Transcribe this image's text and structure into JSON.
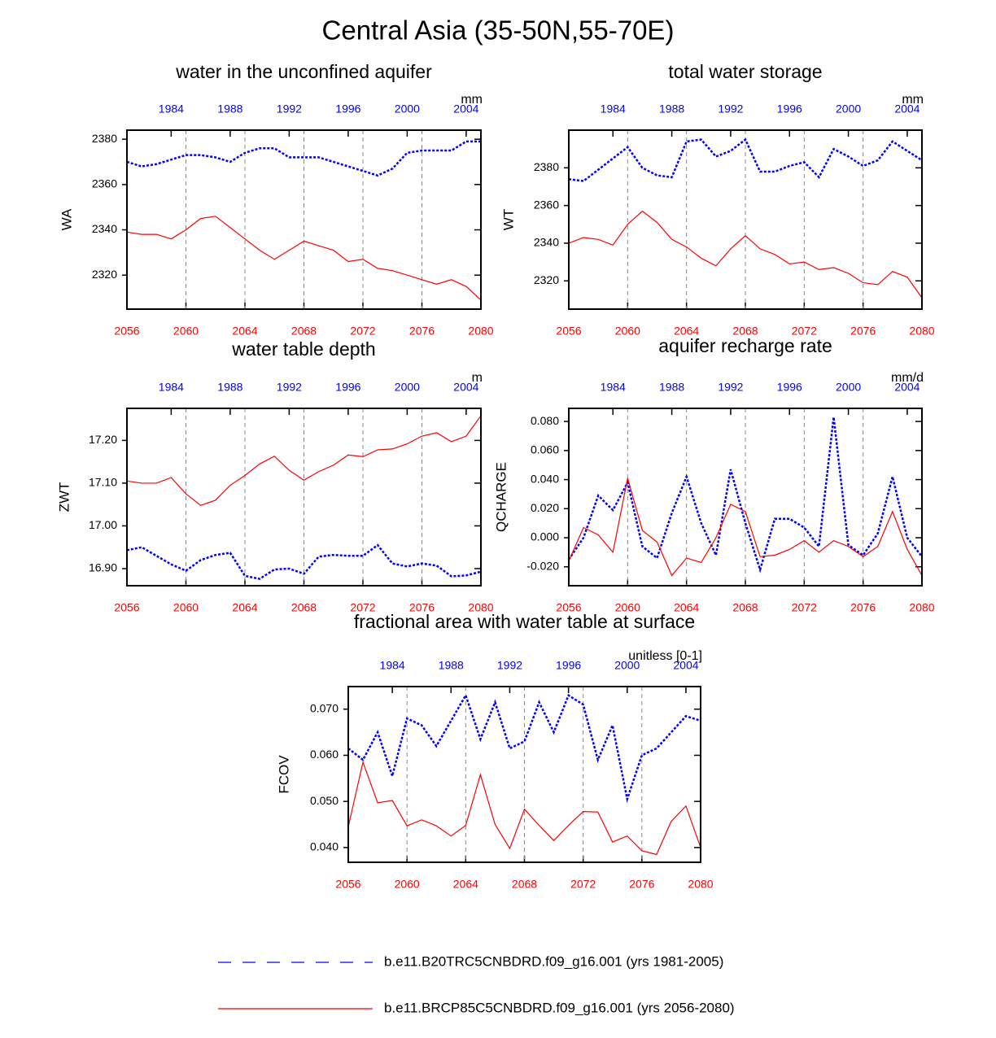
{
  "title": "Central Asia (35-50N,55-70E)",
  "chart_data": [
    {
      "type": "line",
      "title": "water in the unconfined aquifer",
      "ylabel": "WA",
      "units": "mm",
      "x": [
        2056,
        2057,
        2058,
        2059,
        2060,
        2061,
        2062,
        2063,
        2064,
        2065,
        2066,
        2067,
        2068,
        2069,
        2070,
        2071,
        2072,
        2073,
        2074,
        2075,
        2076,
        2077,
        2078,
        2079,
        2080
      ],
      "x2": [
        1981,
        1982,
        1983,
        1984,
        1985,
        1986,
        1987,
        1988,
        1989,
        1990,
        1991,
        1992,
        1993,
        1994,
        1995,
        1996,
        1997,
        1998,
        1999,
        2000,
        2001,
        2002,
        2003,
        2004,
        2005
      ],
      "xlim": [
        2056,
        2080
      ],
      "xticks": [
        2056,
        2060,
        2064,
        2068,
        2072,
        2076,
        2080
      ],
      "x2lim": [
        1981,
        2005
      ],
      "x2ticks": [
        1984,
        1988,
        1992,
        1996,
        2000,
        2004
      ],
      "ylim": [
        2305,
        2384
      ],
      "yticks": [
        2320,
        2340,
        2360,
        2380
      ],
      "grid": true,
      "series": [
        {
          "name": "b.e11.B20TRC5CNBDRD.f09_g16.001 (yrs 1981-2005)",
          "color": "#0000ff",
          "dashed": true,
          "axis": "x2",
          "values": [
            2370,
            2368,
            2369,
            2371,
            2373,
            2373,
            2372,
            2370,
            2374,
            2376,
            2376,
            2372,
            2372,
            2372,
            2370,
            2368,
            2366,
            2364,
            2367,
            2374,
            2375,
            2375,
            2375,
            2379,
            2379
          ]
        },
        {
          "name": "b.e11.BRCP85C5CNBDRD.f09_g16.001 (yrs 2056-2080)",
          "color": "#ff0000",
          "dashed": false,
          "axis": "x",
          "values": [
            2339,
            2338,
            2338,
            2336,
            2340,
            2345,
            2346,
            2341,
            2336,
            2331,
            2327,
            2331,
            2335,
            2333,
            2331,
            2326,
            2327,
            2323,
            2322,
            2320,
            2318,
            2316,
            2318,
            2315,
            2309
          ]
        }
      ]
    },
    {
      "type": "line",
      "title": "total water storage",
      "ylabel": "WT",
      "units": "mm",
      "x": [
        2056,
        2057,
        2058,
        2059,
        2060,
        2061,
        2062,
        2063,
        2064,
        2065,
        2066,
        2067,
        2068,
        2069,
        2070,
        2071,
        2072,
        2073,
        2074,
        2075,
        2076,
        2077,
        2078,
        2079,
        2080
      ],
      "x2": [
        1981,
        1982,
        1983,
        1984,
        1985,
        1986,
        1987,
        1988,
        1989,
        1990,
        1991,
        1992,
        1993,
        1994,
        1995,
        1996,
        1997,
        1998,
        1999,
        2000,
        2001,
        2002,
        2003,
        2004,
        2005
      ],
      "xlim": [
        2056,
        2080
      ],
      "xticks": [
        2056,
        2060,
        2064,
        2068,
        2072,
        2076,
        2080
      ],
      "x2lim": [
        1981,
        2005
      ],
      "x2ticks": [
        1984,
        1988,
        1992,
        1996,
        2000,
        2004
      ],
      "ylim": [
        2305,
        2400
      ],
      "yticks": [
        2320,
        2340,
        2360,
        2380
      ],
      "grid": true,
      "series": [
        {
          "color": "#0000ff",
          "dashed": true,
          "axis": "x2",
          "values": [
            2374,
            2373,
            2379,
            2385,
            2391,
            2380,
            2376,
            2375,
            2394,
            2395,
            2386,
            2389,
            2395,
            2378,
            2378,
            2381,
            2383,
            2375,
            2390,
            2386,
            2381,
            2384,
            2394,
            2389,
            2384
          ]
        },
        {
          "color": "#ff0000",
          "dashed": false,
          "axis": "x",
          "values": [
            2340,
            2343,
            2342,
            2339,
            2350,
            2357,
            2351,
            2342,
            2338,
            2332,
            2328,
            2337,
            2344,
            2337,
            2334,
            2329,
            2330,
            2326,
            2327,
            2324,
            2319,
            2318,
            2325,
            2322,
            2311
          ]
        }
      ]
    },
    {
      "type": "line",
      "title": "water table depth",
      "ylabel": "ZWT",
      "units": "m",
      "x": [
        2056,
        2057,
        2058,
        2059,
        2060,
        2061,
        2062,
        2063,
        2064,
        2065,
        2066,
        2067,
        2068,
        2069,
        2070,
        2071,
        2072,
        2073,
        2074,
        2075,
        2076,
        2077,
        2078,
        2079,
        2080
      ],
      "x2": [
        1981,
        1982,
        1983,
        1984,
        1985,
        1986,
        1987,
        1988,
        1989,
        1990,
        1991,
        1992,
        1993,
        1994,
        1995,
        1996,
        1997,
        1998,
        1999,
        2000,
        2001,
        2002,
        2003,
        2004,
        2005
      ],
      "xlim": [
        2056,
        2080
      ],
      "xticks": [
        2056,
        2060,
        2064,
        2068,
        2072,
        2076,
        2080
      ],
      "x2lim": [
        1981,
        2005
      ],
      "x2ticks": [
        1984,
        1988,
        1992,
        1996,
        2000,
        2004
      ],
      "ylim": [
        16.86,
        17.275
      ],
      "yticks": [
        {
          "value": 16.9,
          "label": "16.90"
        },
        {
          "value": 17.0,
          "label": "17.00"
        },
        {
          "value": 17.1,
          "label": "17.10"
        },
        {
          "value": 17.2,
          "label": "17.20"
        }
      ],
      "grid": true,
      "series": [
        {
          "color": "#0000ff",
          "dashed": true,
          "axis": "x2",
          "values": [
            16.943,
            16.95,
            16.93,
            16.91,
            16.895,
            16.92,
            16.932,
            16.937,
            16.883,
            16.876,
            16.898,
            16.9,
            16.888,
            16.928,
            16.932,
            16.93,
            16.93,
            16.955,
            16.912,
            16.905,
            16.912,
            16.907,
            16.882,
            16.884,
            16.893
          ]
        },
        {
          "color": "#ff0000",
          "dashed": false,
          "axis": "x",
          "values": [
            17.105,
            17.1,
            17.1,
            17.113,
            17.075,
            17.048,
            17.06,
            17.095,
            17.118,
            17.145,
            17.163,
            17.13,
            17.107,
            17.127,
            17.142,
            17.166,
            17.162,
            17.178,
            17.18,
            17.192,
            17.21,
            17.218,
            17.197,
            17.21,
            17.258
          ]
        }
      ]
    },
    {
      "type": "line",
      "title": "aquifer recharge rate",
      "ylabel": "QCHARGE",
      "units": "mm/d",
      "x": [
        2056,
        2057,
        2058,
        2059,
        2060,
        2061,
        2062,
        2063,
        2064,
        2065,
        2066,
        2067,
        2068,
        2069,
        2070,
        2071,
        2072,
        2073,
        2074,
        2075,
        2076,
        2077,
        2078,
        2079,
        2080
      ],
      "x2": [
        1981,
        1982,
        1983,
        1984,
        1985,
        1986,
        1987,
        1988,
        1989,
        1990,
        1991,
        1992,
        1993,
        1994,
        1995,
        1996,
        1997,
        1998,
        1999,
        2000,
        2001,
        2002,
        2003,
        2004,
        2005
      ],
      "xlim": [
        2056,
        2080
      ],
      "xticks": [
        2056,
        2060,
        2064,
        2068,
        2072,
        2076,
        2080
      ],
      "x2lim": [
        1981,
        2005
      ],
      "x2ticks": [
        1984,
        1988,
        1992,
        1996,
        2000,
        2004
      ],
      "ylim": [
        -0.033,
        0.089
      ],
      "yticks": [
        {
          "value": -0.02,
          "label": "-0.020"
        },
        {
          "value": 0,
          "label": "0.000"
        },
        {
          "value": 0.02,
          "label": "0.020"
        },
        {
          "value": 0.04,
          "label": "0.040"
        },
        {
          "value": 0.06,
          "label": "0.060"
        },
        {
          "value": 0.08,
          "label": "0.080"
        }
      ],
      "grid": true,
      "series": [
        {
          "color": "#0000ff",
          "dashed": true,
          "axis": "x2",
          "values": [
            -0.015,
            0.0,
            0.029,
            0.019,
            0.038,
            -0.006,
            -0.014,
            0.017,
            0.042,
            0.01,
            -0.012,
            0.047,
            0.01,
            -0.022,
            0.013,
            0.013,
            0.007,
            -0.006,
            0.083,
            -0.005,
            -0.012,
            0.003,
            0.042,
            0.0,
            -0.013
          ]
        },
        {
          "color": "#ff0000",
          "dashed": false,
          "axis": "x",
          "values": [
            -0.016,
            0.007,
            0.002,
            -0.01,
            0.041,
            0.005,
            -0.003,
            -0.026,
            -0.014,
            -0.017,
            0.0,
            0.023,
            0.018,
            -0.013,
            -0.012,
            -0.008,
            -0.002,
            -0.01,
            -0.002,
            -0.006,
            -0.013,
            -0.006,
            0.018,
            -0.008,
            -0.026
          ]
        }
      ]
    },
    {
      "type": "line",
      "title": "fractional area with water table at surface",
      "ylabel": "FCOV",
      "units": "unitless [0-1]",
      "x": [
        2056,
        2057,
        2058,
        2059,
        2060,
        2061,
        2062,
        2063,
        2064,
        2065,
        2066,
        2067,
        2068,
        2069,
        2070,
        2071,
        2072,
        2073,
        2074,
        2075,
        2076,
        2077,
        2078,
        2079,
        2080
      ],
      "x2": [
        1981,
        1982,
        1983,
        1984,
        1985,
        1986,
        1987,
        1988,
        1989,
        1990,
        1991,
        1992,
        1993,
        1994,
        1995,
        1996,
        1997,
        1998,
        1999,
        2000,
        2001,
        2002,
        2003,
        2004,
        2005
      ],
      "xlim": [
        2056,
        2080
      ],
      "xticks": [
        2056,
        2060,
        2064,
        2068,
        2072,
        2076,
        2080
      ],
      "x2lim": [
        1981,
        2005
      ],
      "x2ticks": [
        1984,
        1988,
        1992,
        1996,
        2000,
        2004
      ],
      "ylim": [
        0.0368,
        0.0749
      ],
      "yticks": [
        {
          "value": 0.04,
          "label": "0.040"
        },
        {
          "value": 0.05,
          "label": "0.050"
        },
        {
          "value": 0.06,
          "label": "0.060"
        },
        {
          "value": 0.07,
          "label": "0.070"
        }
      ],
      "grid": true,
      "series": [
        {
          "color": "#0000ff",
          "dashed": true,
          "axis": "x2",
          "values": [
            0.0615,
            0.059,
            0.065,
            0.0555,
            0.068,
            0.0665,
            0.062,
            0.0675,
            0.073,
            0.0635,
            0.0715,
            0.0615,
            0.063,
            0.0715,
            0.065,
            0.073,
            0.071,
            0.059,
            0.0665,
            0.0505,
            0.06,
            0.0615,
            0.065,
            0.0685,
            0.0675
          ]
        },
        {
          "color": "#ff0000",
          "dashed": false,
          "axis": "x",
          "values": [
            0.0445,
            0.0585,
            0.0497,
            0.0502,
            0.0447,
            0.046,
            0.0447,
            0.0425,
            0.0448,
            0.0558,
            0.045,
            0.0398,
            0.0483,
            0.0448,
            0.0415,
            0.0448,
            0.0478,
            0.0477,
            0.0412,
            0.0425,
            0.0393,
            0.0385,
            0.0457,
            0.049,
            0.04
          ]
        }
      ]
    }
  ]
}
